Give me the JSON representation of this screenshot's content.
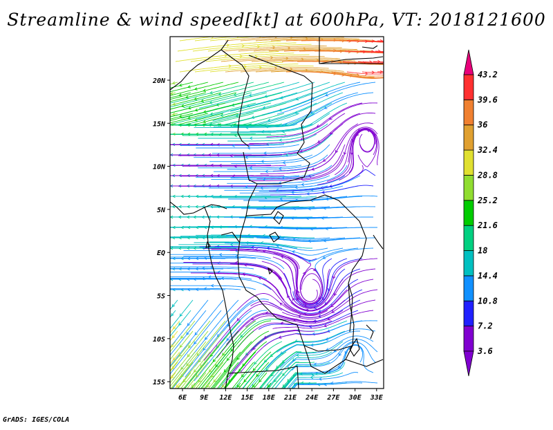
{
  "title": "Streamline & wind speed[kt] at 600hPa, VT: 2018121600",
  "credit": "GrADS: IGES/COLA",
  "map": {
    "lon_labels": [
      "6E",
      "9E",
      "12E",
      "15E",
      "18E",
      "21E",
      "24E",
      "27E",
      "30E",
      "33E"
    ],
    "lat_labels": [
      "20N",
      "15N",
      "10N",
      "5N",
      "EQ",
      "5S",
      "10S",
      "15S"
    ]
  },
  "colorbar": {
    "unit": "kt",
    "labels": [
      "3.6",
      "7.2",
      "10.8",
      "14.4",
      "18",
      "21.6",
      "25.2",
      "28.8",
      "32.4",
      "36",
      "39.6",
      "43.2"
    ],
    "colors": [
      "#8000d0",
      "#2020ff",
      "#1090ff",
      "#00c0c0",
      "#00d080",
      "#00cc00",
      "#90dd30",
      "#e0e030",
      "#e0a030",
      "#f08030",
      "#ff3030",
      "#e8007a"
    ]
  }
}
